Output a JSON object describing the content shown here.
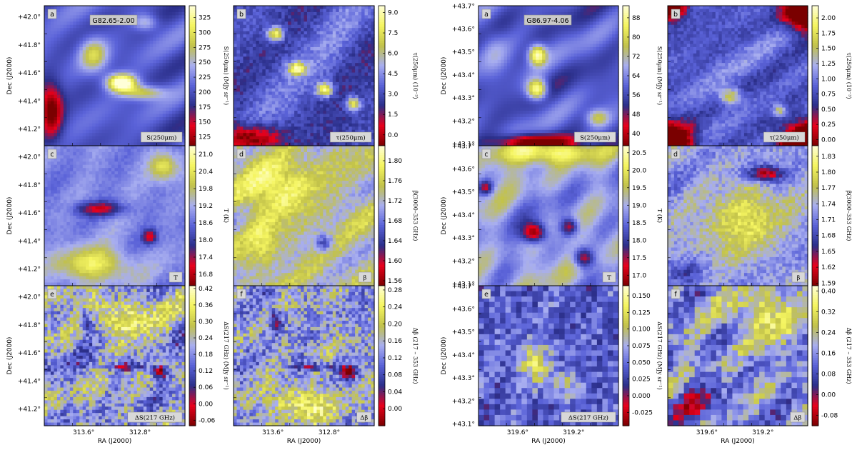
{
  "chart_data": [
    {
      "type": "heatmap",
      "field": "G82.65-2.00",
      "ra_ticks": [
        "313.6°",
        "312.8°"
      ],
      "dec_ticks": [
        "+42.0°",
        "+41.8°",
        "+41.6°",
        "+41.4°",
        "+41.2°"
      ],
      "xlabel": "RA (J2000)",
      "ylabel": "Dec (J2000)",
      "panels": [
        {
          "id": "a",
          "tag": "S(250μm)",
          "cbar_label": "S(250μm) (MJy sr⁻¹)",
          "cbar_ticks": [
            "325",
            "300",
            "275",
            "250",
            "225",
            "200",
            "175",
            "150",
            "125"
          ],
          "range": [
            110,
            345
          ]
        },
        {
          "id": "b",
          "tag": "τ(250μm)",
          "cbar_label": "τ(250μm) (10⁻³)",
          "cbar_ticks": [
            "9.0",
            "7.5",
            "6.0",
            "4.5",
            "3.0",
            "1.5",
            "0.0"
          ],
          "range": [
            -0.8,
            9.5
          ]
        },
        {
          "id": "c",
          "tag": "T",
          "cbar_label": "T (K)",
          "cbar_ticks": [
            "21.0",
            "20.4",
            "19.8",
            "19.2",
            "18.6",
            "18.0",
            "17.4",
            "16.8"
          ],
          "range": [
            16.4,
            21.3
          ]
        },
        {
          "id": "d",
          "tag": "β",
          "cbar_label": "β(3000–353 GHz)",
          "cbar_ticks": [
            "1.80",
            "1.76",
            "1.72",
            "1.68",
            "1.64",
            "1.60",
            "1.56"
          ],
          "range": [
            1.55,
            1.83
          ]
        },
        {
          "id": "e",
          "tag": "ΔS(217 GHz)",
          "cbar_label": "ΔS(217 GHz) (MJy sr⁻¹)",
          "cbar_ticks": [
            "0.42",
            "0.36",
            "0.30",
            "0.24",
            "0.18",
            "0.12",
            "0.06",
            "0.00",
            "-0.06"
          ],
          "range": [
            -0.08,
            0.43
          ]
        },
        {
          "id": "f",
          "tag": "Δβ",
          "cbar_label": "Δβ (217 – 353 GHz)",
          "cbar_ticks": [
            "0.28",
            "0.24",
            "0.20",
            "0.16",
            "0.12",
            "0.08",
            "0.04",
            "0.00"
          ],
          "range": [
            -0.04,
            0.29
          ]
        }
      ]
    },
    {
      "type": "heatmap",
      "field": "G86.97-4.06",
      "ra_ticks": [
        "319.6°",
        "319.2°"
      ],
      "dec_ticks": [
        "+43.7°",
        "+43.6°",
        "+43.5°",
        "+43.4°",
        "+43.3°",
        "+43.2°",
        "+43.1°"
      ],
      "xlabel": "RA (J2000)",
      "ylabel": "Dec (J2000)",
      "panels": [
        {
          "id": "a",
          "tag": "S(250μm)",
          "cbar_label": "S(250μm) (MJy sr⁻¹)",
          "cbar_ticks": [
            "88",
            "80",
            "72",
            "64",
            "56",
            "48",
            "40"
          ],
          "range": [
            35,
            93
          ]
        },
        {
          "id": "b",
          "tag": "τ(250μm)",
          "cbar_label": "τ(250μm) (10⁻³)",
          "cbar_ticks": [
            "2.00",
            "1.75",
            "1.50",
            "1.25",
            "1.00",
            "0.75",
            "0.50",
            "0.25",
            "0.00"
          ],
          "range": [
            -0.1,
            2.2
          ]
        },
        {
          "id": "c",
          "tag": "T",
          "cbar_label": "T (K)",
          "cbar_ticks": [
            "20.5",
            "20.0",
            "19.5",
            "19.0",
            "18.5",
            "18.0",
            "17.5",
            "17.0"
          ],
          "range": [
            16.7,
            20.7
          ]
        },
        {
          "id": "d",
          "tag": "β",
          "cbar_label": "β(3000–353 GHz)",
          "cbar_ticks": [
            "1.83",
            "1.80",
            "1.77",
            "1.74",
            "1.71",
            "1.68",
            "1.65",
            "1.62",
            "1.59"
          ],
          "range": [
            1.585,
            1.85
          ]
        },
        {
          "id": "e",
          "tag": "ΔS(217 GHz)",
          "cbar_label": "ΔS(217 GHz) (MJy sr⁻¹)",
          "cbar_ticks": [
            "0.150",
            "0.125",
            "0.100",
            "0.075",
            "0.050",
            "0.025",
            "0.000",
            "-0.025"
          ],
          "range": [
            -0.045,
            0.165
          ]
        },
        {
          "id": "f",
          "tag": "Δβ",
          "cbar_label": "Δβ (217 – 353 GHz)",
          "cbar_ticks": [
            "0.40",
            "0.32",
            "0.24",
            "0.16",
            "0.08",
            "0.00",
            "-0.08"
          ],
          "range": [
            -0.12,
            0.42
          ]
        }
      ]
    }
  ],
  "colormap": [
    "#7a0000",
    "#e8001c",
    "#2b2f8a",
    "#5a62d8",
    "#a8aef0",
    "#c2c24a",
    "#f5f560",
    "#ffffd8"
  ]
}
